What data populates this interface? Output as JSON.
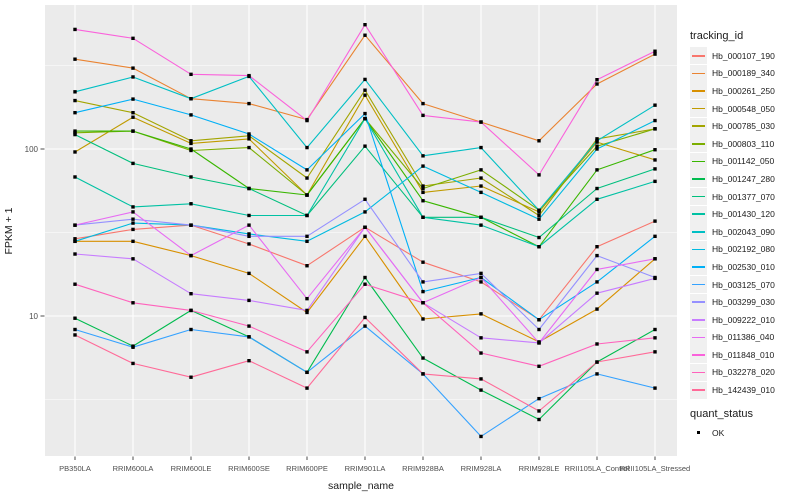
{
  "chart_data": {
    "type": "line",
    "title": "",
    "xlabel": "sample_name",
    "ylabel": "FPKM + 1",
    "y_scale": "log10",
    "ylim": [
      1.35,
      730
    ],
    "y_ticks": [
      10,
      100
    ],
    "y_tick_labels": [
      "10",
      "100"
    ],
    "y_minor_gridlines": [
      3.162,
      31.62,
      316.2
    ],
    "grid": "on",
    "legend_position": "right",
    "legend_title": "tracking_id",
    "legend2_title": "quant_status",
    "legend2_items": [
      {
        "label": "OK",
        "marker": "filled-black-square"
      }
    ],
    "point_marker": "filled-black-square",
    "panel_color": "#EBEBEB",
    "gridline_color": "#FFFFFF",
    "categories": [
      "PB350LA",
      "RRIM600LA",
      "RRIM600LE",
      "RRIM600SE",
      "RRIM600PE",
      "RRIM901LA",
      "RRIM928BA",
      "RRIM928LA",
      "RRIM928LE",
      "RRII105LA_Control",
      "RRII105LA_Stressed"
    ],
    "series": [
      {
        "name": "Hb_000107_190",
        "color": "#F8766D",
        "values": [
          29,
          33,
          35,
          27,
          20,
          34,
          21,
          16,
          9.5,
          26,
          37
        ]
      },
      {
        "name": "Hb_000189_340",
        "color": "#EA8331",
        "values": [
          345,
          305,
          200,
          187,
          150,
          480,
          187,
          145,
          112,
          245,
          370
        ]
      },
      {
        "name": "Hb_000261_250",
        "color": "#D89000",
        "values": [
          28,
          28,
          23,
          18,
          10.5,
          30,
          9.6,
          10.3,
          7,
          11,
          22
        ]
      },
      {
        "name": "Hb_000548_050",
        "color": "#C09B00",
        "values": [
          96,
          155,
          108,
          115,
          53,
          210,
          55,
          60,
          42,
          110,
          86
        ]
      },
      {
        "name": "Hb_000785_030",
        "color": "#A3A500",
        "values": [
          195,
          165,
          112,
          120,
          67,
          225,
          60,
          67,
          40,
          115,
          132
        ]
      },
      {
        "name": "Hb_000803_110",
        "color": "#7CAE00",
        "values": [
          125,
          128,
          98,
          102,
          53,
          152,
          58,
          75,
          43,
          104,
          132
        ]
      },
      {
        "name": "Hb_001142_050",
        "color": "#39B600",
        "values": [
          128,
          128,
          100,
          58,
          53,
          152,
          49,
          39,
          26,
          75,
          99
        ]
      },
      {
        "name": "Hb_001247_280",
        "color": "#00BB4E",
        "values": [
          9.7,
          6.6,
          10.8,
          7.5,
          4.6,
          17,
          5.6,
          3.6,
          2.4,
          5.3,
          8.3
        ]
      },
      {
        "name": "Hb_001377_070",
        "color": "#00BF7D",
        "values": [
          122,
          82,
          68,
          58,
          40,
          104,
          39,
          39,
          29.5,
          58,
          76
        ]
      },
      {
        "name": "Hb_001430_120",
        "color": "#00C1A3",
        "values": [
          68,
          45,
          47,
          40,
          40,
          152,
          39,
          35,
          26,
          50,
          64
        ]
      },
      {
        "name": "Hb_002043_090",
        "color": "#00BFC4",
        "values": [
          220,
          270,
          200,
          272,
          102,
          261,
          91,
          102,
          43,
          112,
          183
        ]
      },
      {
        "name": "Hb_002192_080",
        "color": "#00BAE0",
        "values": [
          28,
          36,
          35,
          31,
          28,
          42,
          79,
          55,
          38,
          100,
          148
        ]
      },
      {
        "name": "Hb_002530_010",
        "color": "#00B0F6",
        "values": [
          165,
          199,
          160,
          123,
          75,
          163,
          14,
          17,
          9.5,
          16,
          30
        ]
      },
      {
        "name": "Hb_003125_070",
        "color": "#35A2FF",
        "values": [
          8.3,
          6.5,
          8.3,
          7.5,
          4.6,
          8.7,
          4.5,
          1.9,
          3.2,
          4.5,
          3.7
        ]
      },
      {
        "name": "Hb_003299_030",
        "color": "#9590FF",
        "values": [
          35,
          38,
          35,
          30,
          30,
          50,
          16,
          18,
          8.3,
          23,
          17
        ]
      },
      {
        "name": "Hb_009222_010",
        "color": "#C77CFF",
        "values": [
          23.5,
          22,
          13.6,
          12.4,
          10.8,
          34,
          12,
          7.4,
          6.9,
          13.7,
          16.8
        ]
      },
      {
        "name": "Hb_011386_040",
        "color": "#E76BF3",
        "values": [
          35,
          42,
          23,
          35,
          12.7,
          34,
          12,
          17,
          6.9,
          19,
          22
        ]
      },
      {
        "name": "Hb_011848_010",
        "color": "#FA62DB",
        "values": [
          520,
          460,
          280,
          275,
          148,
          555,
          159,
          145,
          70,
          260,
          385
        ]
      },
      {
        "name": "Hb_032278_020",
        "color": "#FF62BC",
        "values": [
          15.5,
          12,
          10.8,
          8.7,
          6.1,
          15.5,
          12,
          6,
          5,
          6.8,
          7.4
        ]
      },
      {
        "name": "Hb_142439_010",
        "color": "#FF6A98",
        "values": [
          7.7,
          5.2,
          4.3,
          5.4,
          3.7,
          9.8,
          4.5,
          4.2,
          2.7,
          5.3,
          6.1
        ]
      }
    ]
  }
}
